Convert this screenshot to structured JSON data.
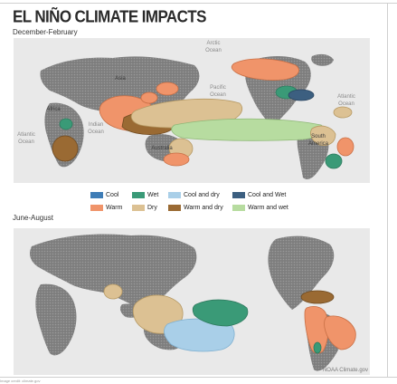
{
  "title": "EL NIÑO CLIMATE IMPACTS",
  "seasons": {
    "winter": "December-February",
    "summer": "June-August"
  },
  "ocean_labels": {
    "arctic": [
      "Arctic",
      "Ocean"
    ],
    "pacific": [
      "Pacific",
      "Ocean"
    ],
    "atlantic_east": [
      "Atlantic",
      "Ocean"
    ],
    "atlantic_west": [
      "Atlantic",
      "Ocean"
    ],
    "indian": [
      "Indian",
      "Ocean"
    ]
  },
  "continent_labels": {
    "asia": "Asia",
    "africa": "Africa",
    "australia": "Australia",
    "south_america": [
      "South",
      "America"
    ]
  },
  "legend": [
    {
      "label": "Cool",
      "color": "#3f7db6"
    },
    {
      "label": "Wet",
      "color": "#3a9a77"
    },
    {
      "label": "Cool and dry",
      "color": "#a9cfe8"
    },
    {
      "label": "Cool and Wet",
      "color": "#3c5f80"
    },
    {
      "label": "Warm",
      "color": "#f0946a"
    },
    {
      "label": "Dry",
      "color": "#dcc193"
    },
    {
      "label": "Warm and dry",
      "color": "#9a6a33"
    },
    {
      "label": "Warm and wet",
      "color": "#b7dca0"
    }
  ],
  "credit": "NOAA Climate.gov",
  "footer_note": "Image credit: climate.gov"
}
